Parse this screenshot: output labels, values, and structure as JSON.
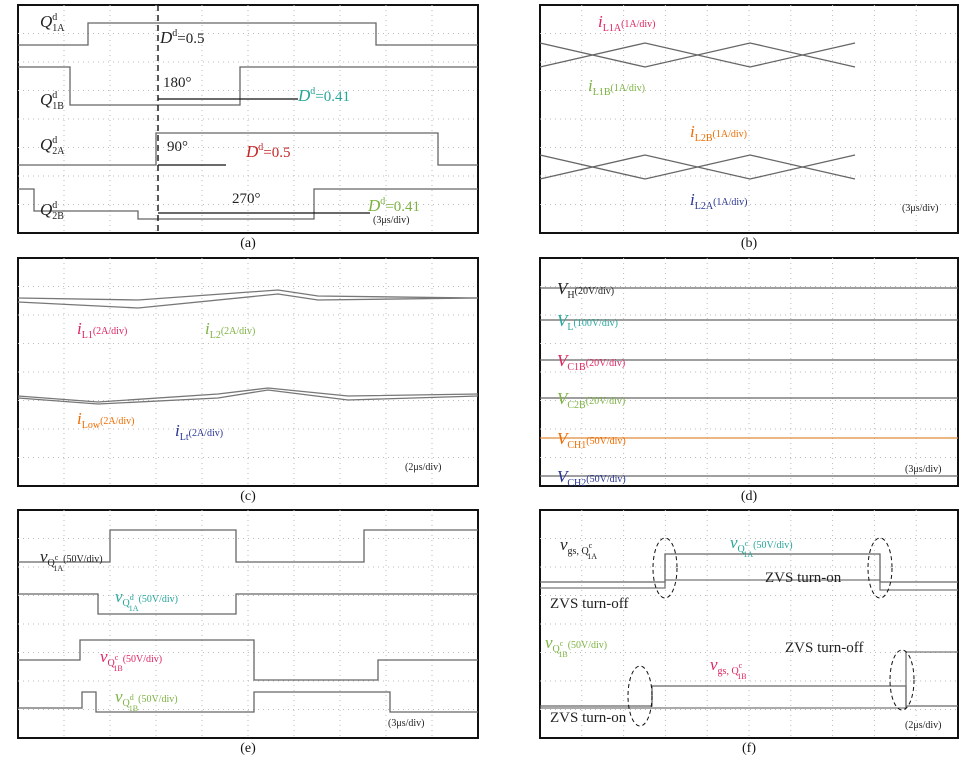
{
  "panels": [
    {
      "caption": "(a)",
      "labels": [
        {
          "v": "Q",
          "sup": "d",
          "sub": "1A",
          "color": "#222"
        },
        {
          "v": "D",
          "sup": "d",
          "rest": "=0.5",
          "color": "#222"
        },
        {
          "v": "Q",
          "sup": "d",
          "sub": "1B",
          "color": "#222"
        },
        {
          "rest": "180°",
          "color": "#222"
        },
        {
          "v": "D",
          "sup": "d",
          "rest": "=0.41",
          "color": "#26a69a"
        },
        {
          "v": "Q",
          "sup": "d",
          "sub": "2A",
          "color": "#222"
        },
        {
          "rest": "90°",
          "color": "#222"
        },
        {
          "v": "D",
          "sup": "d",
          "rest": "=0.5",
          "color": "#c62828"
        },
        {
          "v": "Q",
          "sup": "d",
          "sub": "2B",
          "color": "#222"
        },
        {
          "rest": "270°",
          "color": "#222"
        },
        {
          "v": "D",
          "sup": "d",
          "rest": "=0.41",
          "color": "#7cb342"
        },
        {
          "unit": "(3μs/div)",
          "color": "#222"
        }
      ]
    },
    {
      "caption": "(b)",
      "labels": [
        {
          "v": "i",
          "sub": "L1A",
          "unit": "(1A/div)",
          "color": "#e0245e"
        },
        {
          "v": "i",
          "sub": "L1B",
          "unit": "(1A/div)",
          "color": "#7cb342"
        },
        {
          "v": "i",
          "sub": "L2B",
          "unit": "(1A/div)",
          "color": "#ef6c00"
        },
        {
          "v": "i",
          "sub": "L2A",
          "unit": "(1A/div)",
          "color": "#283593"
        },
        {
          "unit": "(3μs/div)",
          "color": "#222"
        }
      ]
    },
    {
      "caption": "(c)",
      "labels": [
        {
          "v": "i",
          "sub": "L1",
          "unit": "(2A/div)",
          "color": "#e0245e"
        },
        {
          "v": "i",
          "sub": "L2",
          "unit": "(2A/div)",
          "color": "#7cb342"
        },
        {
          "v": "i",
          "sub": "Low",
          "unit": "(2A/div)",
          "color": "#ef6c00"
        },
        {
          "v": "i",
          "sub": "Lt",
          "unit": "(2A/div)",
          "color": "#283593"
        },
        {
          "unit": "(2μs/div)",
          "color": "#222"
        }
      ]
    },
    {
      "caption": "(d)",
      "labels": [
        {
          "v": "V",
          "sub": "H",
          "unit": "(20V/div)",
          "color": "#222"
        },
        {
          "v": "V",
          "sub": "L",
          "unit": "(100V/div)",
          "color": "#26a69a"
        },
        {
          "v": "V",
          "sub": "C1B",
          "unit": "(20V/div)",
          "color": "#e0245e"
        },
        {
          "v": "V",
          "sub": "C2B",
          "unit": "(20V/div)",
          "color": "#7cb342"
        },
        {
          "v": "V",
          "sub": "CH1",
          "unit": "(50V/div)",
          "color": "#ef6c00"
        },
        {
          "v": "V",
          "sub": "CH2",
          "unit": "(50V/div)",
          "color": "#283593"
        },
        {
          "unit": "(3μs/div)",
          "color": "#222"
        }
      ]
    },
    {
      "caption": "(e)",
      "labels": [
        {
          "v": "v",
          "sub": "Q",
          "subsup": "c",
          "subsub": "1A",
          "unit": "(50V/div)",
          "color": "#222"
        },
        {
          "v": "v",
          "sub": "Q",
          "subsup": "d",
          "subsub": "1A",
          "unit": "(50V/div)",
          "color": "#26a69a"
        },
        {
          "v": "v",
          "sub": "Q",
          "subsup": "c",
          "subsub": "1B",
          "unit": "(50V/div)",
          "color": "#e0245e"
        },
        {
          "v": "v",
          "sub": "Q",
          "subsup": "d",
          "subsub": "1B",
          "unit": "(50V/div)",
          "color": "#7cb342"
        },
        {
          "unit": "(3μs/div)",
          "color": "#222"
        }
      ]
    },
    {
      "caption": "(f)",
      "labels": [
        {
          "v": "v",
          "sub": "gs, Q",
          "subsup": "c",
          "subsub": "1A",
          "color": "#222"
        },
        {
          "v": "v",
          "sub": "Q",
          "subsup": "c",
          "subsub": "1A",
          "unit": "(50V/div)",
          "color": "#26a69a"
        },
        {
          "rest": "ZVS turn-on",
          "color": "#222"
        },
        {
          "rest": "ZVS turn-off",
          "color": "#222"
        },
        {
          "v": "v",
          "sub": "Q",
          "subsup": "c",
          "subsub": "1B",
          "unit": "(50V/div)",
          "color": "#7cb342"
        },
        {
          "v": "v",
          "sub": "gs, Q",
          "subsup": "c",
          "subsub": "1B",
          "color": "#e0245e"
        },
        {
          "rest": "ZVS turn-off",
          "color": "#222"
        },
        {
          "rest": "ZVS turn-on",
          "color": "#222"
        },
        {
          "unit": "(2μs/div)",
          "color": "#222"
        }
      ]
    }
  ]
}
